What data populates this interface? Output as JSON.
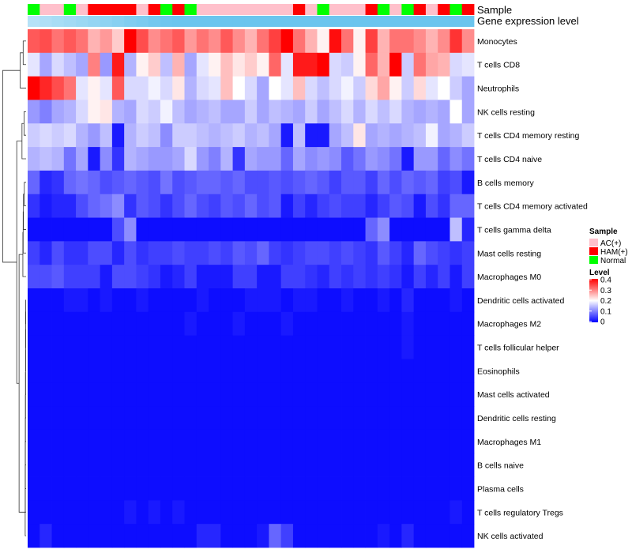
{
  "chart_data": {
    "type": "heatmap",
    "annotation_labels": {
      "sample": "Sample",
      "gene": "Gene expression level"
    },
    "legend": {
      "sample_title": "Sample",
      "sample_entries": [
        {
          "label": "AC(+)",
          "color": "#ffc0cb"
        },
        {
          "label": "HAM(+)",
          "color": "#ff0000"
        },
        {
          "label": "Normal",
          "color": "#00ff00"
        }
      ],
      "level_title": "Level",
      "level_ticks": [
        "0.4",
        "0.3",
        "0.2",
        "0.1",
        "0"
      ],
      "level_domain": [
        0,
        0.4
      ]
    },
    "colors": {
      "low": "#0000ff",
      "mid": "#ffffff",
      "high": "#ff0000",
      "gene_bar": "#6cc5ee"
    },
    "sample_groups": [
      "Normal",
      "AC(+)",
      "AC(+)",
      "Normal",
      "AC(+)",
      "HAM(+)",
      "HAM(+)",
      "HAM(+)",
      "HAM(+)",
      "AC(+)",
      "HAM(+)",
      "Normal",
      "HAM(+)",
      "Normal",
      "AC(+)",
      "AC(+)",
      "AC(+)",
      "AC(+)",
      "AC(+)",
      "AC(+)",
      "AC(+)",
      "AC(+)",
      "HAM(+)",
      "AC(+)",
      "Normal",
      "AC(+)",
      "AC(+)",
      "AC(+)",
      "HAM(+)",
      "Normal",
      "AC(+)",
      "Normal",
      "HAM(+)",
      "AC(+)",
      "HAM(+)",
      "Normal",
      "HAM(+)"
    ],
    "rows": [
      {
        "label": "Monocytes",
        "values": [
          0.33,
          0.34,
          0.31,
          0.33,
          0.31,
          0.26,
          0.28,
          0.24,
          0.4,
          0.34,
          0.29,
          0.31,
          0.33,
          0.28,
          0.31,
          0.29,
          0.33,
          0.29,
          0.26,
          0.31,
          0.35,
          0.4,
          0.31,
          0.26,
          0.21,
          0.39,
          0.31,
          0.21,
          0.35,
          0.26,
          0.31,
          0.31,
          0.29,
          0.26,
          0.29,
          0.36,
          0.29
        ]
      },
      {
        "label": "T cells CD8",
        "values": [
          0.18,
          0.13,
          0.17,
          0.15,
          0.13,
          0.3,
          0.12,
          0.38,
          0.14,
          0.21,
          0.24,
          0.15,
          0.26,
          0.13,
          0.18,
          0.21,
          0.25,
          0.22,
          0.24,
          0.21,
          0.32,
          0.18,
          0.38,
          0.38,
          0.4,
          0.17,
          0.16,
          0.21,
          0.32,
          0.26,
          0.4,
          0.16,
          0.31,
          0.27,
          0.26,
          0.17,
          0.18
        ]
      },
      {
        "label": "Neutrophils",
        "values": [
          0.4,
          0.37,
          0.34,
          0.31,
          0.18,
          0.21,
          0.18,
          0.33,
          0.17,
          0.17,
          0.19,
          0.17,
          0.22,
          0.14,
          0.17,
          0.18,
          0.25,
          0.2,
          0.17,
          0.13,
          0.2,
          0.18,
          0.25,
          0.17,
          0.15,
          0.17,
          0.19,
          0.16,
          0.23,
          0.27,
          0.21,
          0.16,
          0.23,
          0.18,
          0.2,
          0.16,
          0.13
        ]
      },
      {
        "label": "NK cells resting",
        "values": [
          0.12,
          0.1,
          0.13,
          0.14,
          0.17,
          0.21,
          0.22,
          0.14,
          0.13,
          0.17,
          0.16,
          0.19,
          0.15,
          0.13,
          0.14,
          0.15,
          0.13,
          0.13,
          0.16,
          0.13,
          0.15,
          0.14,
          0.13,
          0.16,
          0.13,
          0.15,
          0.17,
          0.14,
          0.17,
          0.15,
          0.17,
          0.14,
          0.13,
          0.14,
          0.13,
          0.2,
          0.13
        ]
      },
      {
        "label": "T cells CD4 memory resting",
        "values": [
          0.16,
          0.17,
          0.16,
          0.17,
          0.14,
          0.12,
          0.15,
          0.02,
          0.14,
          0.16,
          0.15,
          0.11,
          0.16,
          0.16,
          0.15,
          0.14,
          0.15,
          0.16,
          0.14,
          0.15,
          0.13,
          0.02,
          0.15,
          0.02,
          0.02,
          0.13,
          0.15,
          0.22,
          0.13,
          0.14,
          0.13,
          0.14,
          0.15,
          0.19,
          0.13,
          0.14,
          0.16
        ]
      },
      {
        "label": "T cells CD4 naive",
        "values": [
          0.14,
          0.15,
          0.14,
          0.09,
          0.13,
          0.02,
          0.11,
          0.04,
          0.14,
          0.13,
          0.12,
          0.12,
          0.13,
          0.17,
          0.12,
          0.1,
          0.14,
          0.04,
          0.13,
          0.12,
          0.12,
          0.08,
          0.13,
          0.11,
          0.12,
          0.11,
          0.07,
          0.09,
          0.12,
          0.11,
          0.09,
          0.02,
          0.12,
          0.12,
          0.08,
          0.11,
          0.09
        ]
      },
      {
        "label": "B cells memory",
        "values": [
          0.08,
          0.03,
          0.04,
          0.08,
          0.09,
          0.08,
          0.06,
          0.07,
          0.08,
          0.07,
          0.06,
          0.09,
          0.06,
          0.07,
          0.08,
          0.08,
          0.07,
          0.08,
          0.06,
          0.06,
          0.07,
          0.06,
          0.07,
          0.08,
          0.07,
          0.05,
          0.07,
          0.07,
          0.05,
          0.08,
          0.06,
          0.08,
          0.07,
          0.08,
          0.05,
          0.06,
          0.02
        ]
      },
      {
        "label": "T cells CD4 memory activated",
        "values": [
          0.04,
          0.02,
          0.03,
          0.03,
          0.06,
          0.08,
          0.09,
          0.11,
          0.04,
          0.07,
          0.06,
          0.04,
          0.06,
          0.08,
          0.06,
          0.05,
          0.07,
          0.06,
          0.08,
          0.06,
          0.07,
          0.02,
          0.05,
          0.03,
          0.05,
          0.06,
          0.05,
          0.05,
          0.03,
          0.05,
          0.07,
          0.06,
          0.02,
          0.06,
          0.04,
          0.08,
          0.08
        ]
      },
      {
        "label": "T cells gamma delta",
        "values": [
          0.01,
          0.01,
          0.01,
          0.01,
          0.01,
          0.01,
          0.01,
          0.06,
          0.11,
          0.01,
          0.01,
          0.01,
          0.01,
          0.01,
          0.01,
          0.01,
          0.01,
          0.01,
          0.01,
          0.01,
          0.01,
          0.01,
          0.01,
          0.01,
          0.01,
          0.01,
          0.01,
          0.01,
          0.08,
          0.11,
          0.01,
          0.01,
          0.01,
          0.01,
          0.01,
          0.15,
          0.03
        ]
      },
      {
        "label": "Mast cells resting",
        "values": [
          0.05,
          0.03,
          0.06,
          0.04,
          0.04,
          0.06,
          0.06,
          0.03,
          0.06,
          0.04,
          0.05,
          0.05,
          0.06,
          0.05,
          0.05,
          0.06,
          0.05,
          0.07,
          0.06,
          0.08,
          0.05,
          0.04,
          0.05,
          0.06,
          0.06,
          0.05,
          0.06,
          0.05,
          0.04,
          0.07,
          0.05,
          0.03,
          0.08,
          0.06,
          0.05,
          0.04,
          0.05
        ]
      },
      {
        "label": "Macrophages M0",
        "values": [
          0.06,
          0.06,
          0.07,
          0.05,
          0.05,
          0.05,
          0.02,
          0.06,
          0.06,
          0.05,
          0.04,
          0.02,
          0.03,
          0.05,
          0.02,
          0.02,
          0.02,
          0.05,
          0.05,
          0.02,
          0.02,
          0.05,
          0.05,
          0.04,
          0.03,
          0.05,
          0.04,
          0.05,
          0.04,
          0.05,
          0.04,
          0.02,
          0.05,
          0.03,
          0.05,
          0.02,
          0.05
        ]
      },
      {
        "label": "Dendritic cells activated",
        "values": [
          0.01,
          0.01,
          0.01,
          0.02,
          0.02,
          0.01,
          0.02,
          0.01,
          0.01,
          0.02,
          0.01,
          0.01,
          0.01,
          0.01,
          0.02,
          0.01,
          0.01,
          0.01,
          0.02,
          0.02,
          0.02,
          0.01,
          0.02,
          0.02,
          0.01,
          0.01,
          0.02,
          0.01,
          0.01,
          0.02,
          0.01,
          0.03,
          0.01,
          0.01,
          0.01,
          0.02,
          0.01
        ]
      },
      {
        "label": "Macrophages M2",
        "values": [
          0.01,
          0.01,
          0.01,
          0.01,
          0.01,
          0.01,
          0.01,
          0.01,
          0.01,
          0.01,
          0.01,
          0.01,
          0.01,
          0.02,
          0.01,
          0.01,
          0.01,
          0.02,
          0.01,
          0.01,
          0.01,
          0.02,
          0.01,
          0.01,
          0.01,
          0.01,
          0.01,
          0.01,
          0.01,
          0.01,
          0.01,
          0.02,
          0.01,
          0.01,
          0.01,
          0.01,
          0.01
        ]
      },
      {
        "label": "T cells follicular helper",
        "values": [
          0.01,
          0.01,
          0.01,
          0.01,
          0.01,
          0.01,
          0.01,
          0.01,
          0.01,
          0.01,
          0.01,
          0.01,
          0.01,
          0.01,
          0.01,
          0.01,
          0.01,
          0.01,
          0.01,
          0.01,
          0.01,
          0.01,
          0.01,
          0.01,
          0.01,
          0.01,
          0.01,
          0.01,
          0.01,
          0.01,
          0.01,
          0.02,
          0.01,
          0.01,
          0.01,
          0.01,
          0.01
        ]
      },
      {
        "label": "Eosinophils",
        "values": [
          0.01,
          0.01,
          0.01,
          0.01,
          0.01,
          0.01,
          0.01,
          0.01,
          0.01,
          0.01,
          0.01,
          0.01,
          0.01,
          0.01,
          0.01,
          0.01,
          0.01,
          0.01,
          0.01,
          0.01,
          0.01,
          0.01,
          0.01,
          0.01,
          0.01,
          0.01,
          0.01,
          0.01,
          0.01,
          0.01,
          0.01,
          0.01,
          0.01,
          0.01,
          0.01,
          0.01,
          0.01
        ]
      },
      {
        "label": "Mast cells activated",
        "values": [
          0.01,
          0.01,
          0.01,
          0.01,
          0.01,
          0.01,
          0.01,
          0.01,
          0.01,
          0.01,
          0.01,
          0.01,
          0.01,
          0.01,
          0.01,
          0.01,
          0.01,
          0.01,
          0.01,
          0.01,
          0.01,
          0.01,
          0.01,
          0.01,
          0.01,
          0.01,
          0.01,
          0.01,
          0.01,
          0.01,
          0.01,
          0.01,
          0.01,
          0.01,
          0.01,
          0.01,
          0.01
        ]
      },
      {
        "label": "Dendritic cells resting",
        "values": [
          0.01,
          0.01,
          0.01,
          0.01,
          0.01,
          0.01,
          0.01,
          0.01,
          0.01,
          0.01,
          0.01,
          0.01,
          0.01,
          0.01,
          0.01,
          0.01,
          0.01,
          0.01,
          0.01,
          0.01,
          0.01,
          0.01,
          0.01,
          0.01,
          0.01,
          0.01,
          0.01,
          0.01,
          0.01,
          0.01,
          0.01,
          0.01,
          0.01,
          0.01,
          0.01,
          0.01,
          0.01
        ]
      },
      {
        "label": "Macrophages M1",
        "values": [
          0.01,
          0.01,
          0.01,
          0.01,
          0.01,
          0.01,
          0.01,
          0.01,
          0.01,
          0.01,
          0.01,
          0.01,
          0.01,
          0.01,
          0.01,
          0.01,
          0.01,
          0.01,
          0.01,
          0.01,
          0.01,
          0.01,
          0.01,
          0.01,
          0.01,
          0.01,
          0.01,
          0.01,
          0.01,
          0.01,
          0.01,
          0.01,
          0.01,
          0.01,
          0.01,
          0.01,
          0.01
        ]
      },
      {
        "label": "B cells naive",
        "values": [
          0.01,
          0.01,
          0.01,
          0.01,
          0.01,
          0.01,
          0.01,
          0.01,
          0.01,
          0.01,
          0.01,
          0.01,
          0.01,
          0.01,
          0.01,
          0.01,
          0.01,
          0.01,
          0.01,
          0.01,
          0.01,
          0.01,
          0.01,
          0.01,
          0.01,
          0.01,
          0.01,
          0.01,
          0.01,
          0.01,
          0.01,
          0.01,
          0.01,
          0.01,
          0.01,
          0.01,
          0.01
        ]
      },
      {
        "label": "Plasma cells",
        "values": [
          0.01,
          0.01,
          0.01,
          0.01,
          0.01,
          0.01,
          0.01,
          0.01,
          0.01,
          0.01,
          0.01,
          0.01,
          0.01,
          0.01,
          0.01,
          0.01,
          0.01,
          0.01,
          0.01,
          0.01,
          0.01,
          0.01,
          0.01,
          0.01,
          0.01,
          0.01,
          0.01,
          0.01,
          0.01,
          0.01,
          0.01,
          0.01,
          0.01,
          0.01,
          0.01,
          0.01,
          0.01
        ]
      },
      {
        "label": "T cells regulatory  Tregs",
        "values": [
          0.01,
          0.01,
          0.01,
          0.01,
          0.01,
          0.01,
          0.01,
          0.01,
          0.02,
          0.01,
          0.02,
          0.01,
          0.02,
          0.01,
          0.01,
          0.01,
          0.01,
          0.01,
          0.01,
          0.01,
          0.01,
          0.01,
          0.01,
          0.01,
          0.01,
          0.01,
          0.01,
          0.01,
          0.01,
          0.01,
          0.01,
          0.01,
          0.01,
          0.01,
          0.01,
          0.02,
          0.01
        ]
      },
      {
        "label": "NK cells activated",
        "values": [
          0.01,
          0.03,
          0.01,
          0.01,
          0.01,
          0.01,
          0.01,
          0.01,
          0.01,
          0.01,
          0.01,
          0.01,
          0.01,
          0.01,
          0.03,
          0.03,
          0.01,
          0.01,
          0.01,
          0.02,
          0.08,
          0.05,
          0.01,
          0.01,
          0.01,
          0.01,
          0.01,
          0.01,
          0.01,
          0.02,
          0.01,
          0.03,
          0.01,
          0.01,
          0.01,
          0.01,
          0.01
        ]
      }
    ],
    "row_dendrogram": [
      [
        0,
        4.0
      ],
      [
        0.15,
        1.0
      ],
      [
        1,
        1.6
      ],
      [
        2,
        2.6
      ],
      [
        0.5,
        1.9
      ],
      [
        0.25,
        3.4
      ],
      [
        3,
        1.0
      ],
      [
        4,
        0.6
      ],
      [
        5,
        1.3
      ],
      [
        6,
        2.3
      ],
      [
        7,
        3.2
      ],
      [
        8,
        3.8
      ]
    ]
  }
}
